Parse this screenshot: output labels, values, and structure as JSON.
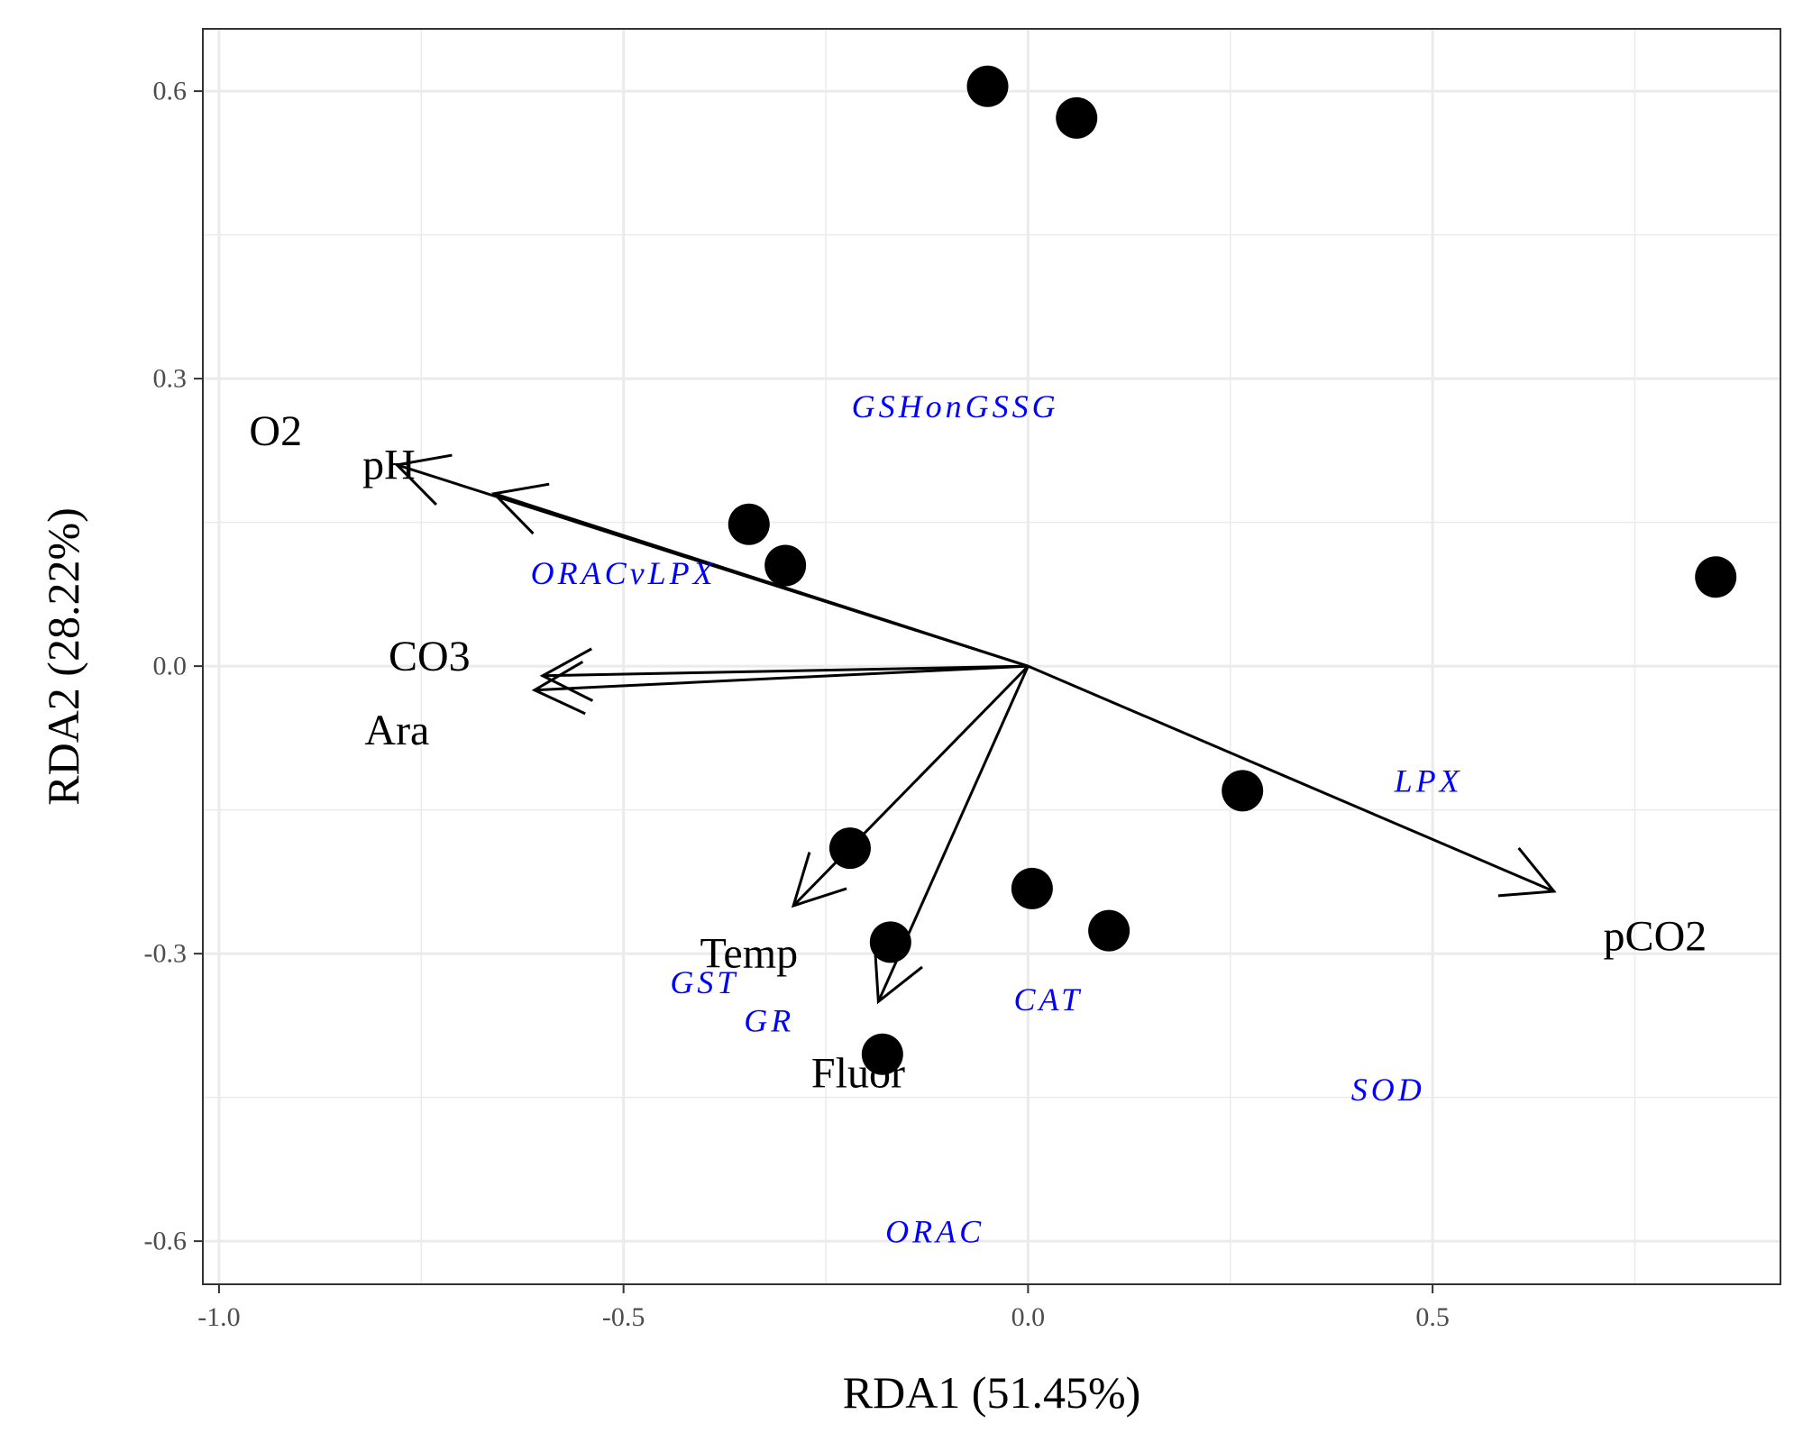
{
  "chart_data": {
    "type": "scatter",
    "subtype": "rda-biplot",
    "title": "",
    "xlabel": "RDA1 (51.45%)",
    "ylabel": "RDA2 (28.22%)",
    "xlim": [
      -1.02,
      0.93
    ],
    "ylim": [
      -0.645,
      0.665
    ],
    "x_ticks": [
      -1.0,
      -0.5,
      0.0,
      0.5
    ],
    "x_tick_labels": [
      "-1.0",
      "-0.5",
      "0.0",
      "0.5"
    ],
    "y_ticks": [
      -0.6,
      -0.3,
      0.0,
      0.3,
      0.6
    ],
    "y_tick_labels": [
      "-0.6",
      "-0.3",
      "0.0",
      "0.3",
      "0.6"
    ],
    "grid": true,
    "sites": [
      {
        "x": -0.05,
        "y": 0.605
      },
      {
        "x": 0.06,
        "y": 0.572
      },
      {
        "x": -0.345,
        "y": 0.148
      },
      {
        "x": -0.3,
        "y": 0.105
      },
      {
        "x": 0.85,
        "y": 0.093
      },
      {
        "x": 0.265,
        "y": -0.13
      },
      {
        "x": -0.22,
        "y": -0.19
      },
      {
        "x": 0.005,
        "y": -0.232
      },
      {
        "x": 0.1,
        "y": -0.276
      },
      {
        "x": -0.17,
        "y": -0.288
      },
      {
        "x": -0.18,
        "y": -0.405
      }
    ],
    "env_vectors": [
      {
        "name": "pH",
        "x": -0.78,
        "y": 0.21
      },
      {
        "name": "O2",
        "x": -0.66,
        "y": 0.18
      },
      {
        "name": "CO3",
        "x": -0.6,
        "y": -0.01
      },
      {
        "name": "Ara",
        "x": -0.61,
        "y": -0.025
      },
      {
        "name": "Temp",
        "x": -0.29,
        "y": -0.25
      },
      {
        "name": "Fluor",
        "x": -0.185,
        "y": -0.35
      },
      {
        "name": "pCO2",
        "x": 0.65,
        "y": -0.235
      }
    ],
    "env_labels": [
      {
        "text": "O2",
        "x": -0.93,
        "y": 0.245
      },
      {
        "text": "pH",
        "x": -0.79,
        "y": 0.21
      },
      {
        "text": "CO3",
        "x": -0.74,
        "y": 0.01
      },
      {
        "text": "Ara",
        "x": -0.78,
        "y": -0.067
      },
      {
        "text": "Temp",
        "x": -0.345,
        "y": -0.3
      },
      {
        "text": "Fluor",
        "x": -0.21,
        "y": -0.425
      },
      {
        "text": "pCO2",
        "x": 0.775,
        "y": -0.282
      }
    ],
    "response_labels": [
      {
        "text": "GSHonGSSG",
        "x": -0.09,
        "y": 0.271
      },
      {
        "text": "ORACvLPX",
        "x": -0.5,
        "y": 0.097
      },
      {
        "text": "LPX",
        "x": 0.495,
        "y": -0.12
      },
      {
        "text": "GST",
        "x": -0.4,
        "y": -0.33
      },
      {
        "text": "GR",
        "x": -0.32,
        "y": -0.37
      },
      {
        "text": "CAT",
        "x": 0.025,
        "y": -0.348
      },
      {
        "text": "SOD",
        "x": 0.445,
        "y": -0.442
      },
      {
        "text": "ORAC",
        "x": -0.115,
        "y": -0.59
      }
    ],
    "colors": {
      "sites": "#000000",
      "env": "#000000",
      "response": "#0000ff",
      "grid": "#ebebeb",
      "panel_border": "#333333"
    }
  }
}
